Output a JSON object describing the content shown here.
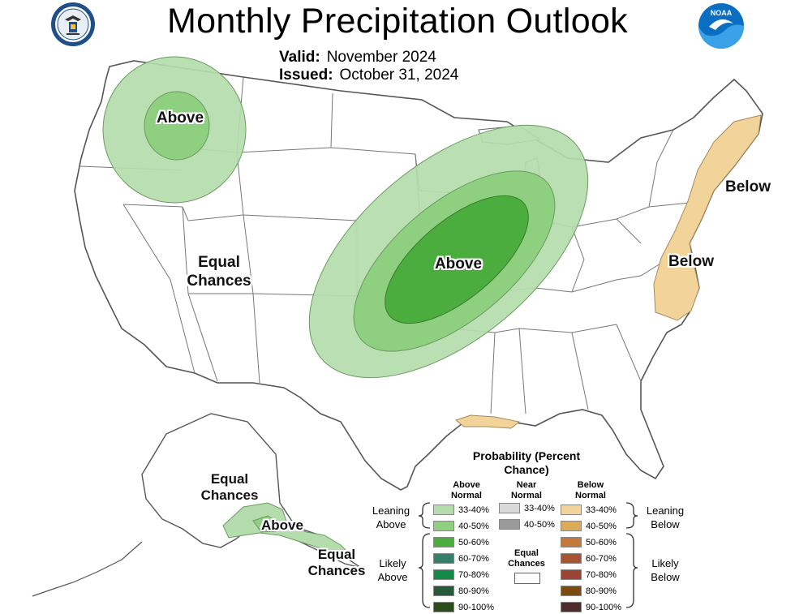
{
  "header": {
    "title": "Monthly Precipitation Outlook",
    "valid_label": "Valid:",
    "valid_value": "November 2024",
    "issued_label": "Issued:",
    "issued_value": "October 31, 2024"
  },
  "logos": {
    "left": "commerce-seal-icon",
    "right": "noaa-logo-icon",
    "noaa_text": "NOAA"
  },
  "map_labels": {
    "northwest": "Above",
    "west": "Equal Chances",
    "central": "Above",
    "northeast": "Below",
    "mid_atlantic": "Below",
    "alaska_north": "Equal Chances",
    "alaska_south": "Above",
    "alaska_east": "Equal Chances"
  },
  "legend": {
    "title": "Probability (Percent Chance)",
    "columns": {
      "above": "Above Normal",
      "near": "Near Normal",
      "below": "Below Normal"
    },
    "side_labels": {
      "leaning_above": "Leaning Above",
      "likely_above": "Likely Above",
      "leaning_below": "Leaning Below",
      "likely_below": "Likely Below",
      "equal": "Equal Chances"
    },
    "above": [
      {
        "label": "33-40%",
        "color": "#b4dcac"
      },
      {
        "label": "40-50%",
        "color": "#8fcf80"
      },
      {
        "label": "50-60%",
        "color": "#4aad3d"
      },
      {
        "label": "60-70%",
        "color": "#35806a"
      },
      {
        "label": "70-80%",
        "color": "#138a48"
      },
      {
        "label": "80-90%",
        "color": "#275a3b"
      },
      {
        "label": "90-100%",
        "color": "#2b4d1a"
      }
    ],
    "near": [
      {
        "label": "33-40%",
        "color": "#d9d9d9"
      },
      {
        "label": "40-50%",
        "color": "#9b9b9b"
      }
    ],
    "below": [
      {
        "label": "33-40%",
        "color": "#f2d49a"
      },
      {
        "label": "40-50%",
        "color": "#dbab58"
      },
      {
        "label": "50-60%",
        "color": "#c2783a"
      },
      {
        "label": "60-70%",
        "color": "#a85434"
      },
      {
        "label": "70-80%",
        "color": "#9b4436"
      },
      {
        "label": "80-90%",
        "color": "#7a4a0f"
      },
      {
        "label": "90-100%",
        "color": "#4e2c2c"
      }
    ]
  }
}
